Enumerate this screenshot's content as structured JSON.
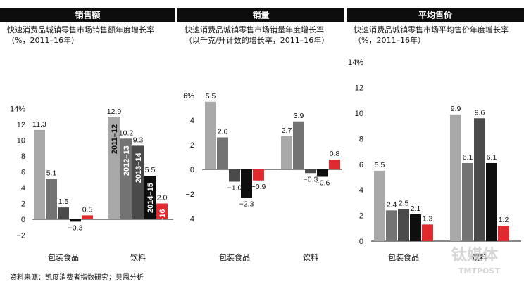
{
  "chart_data": [
    {
      "type": "bar",
      "header": "销售额",
      "subtitle_line1": "快速消费品城镇零售市场销售额年度增长率",
      "subtitle_line2": "（%，2011–16年）",
      "categories": [
        "包装食品",
        "饮料"
      ],
      "series": [
        {
          "name": "2011–12",
          "values": [
            11.3,
            12.9
          ]
        },
        {
          "name": "2012–13",
          "values": [
            5.1,
            10.2
          ]
        },
        {
          "name": "2013–14",
          "values": [
            1.5,
            9.3
          ]
        },
        {
          "name": "2014–15",
          "values": [
            -0.3,
            5.5
          ]
        },
        {
          "name": "15–16",
          "values": [
            0.5,
            2.0
          ]
        }
      ],
      "value_labels": [
        [
          "11.3",
          "5.1",
          "1.5",
          "−0.3",
          "0.5"
        ],
        [
          "12.9",
          "10.2",
          "9.3",
          "5.5",
          "2.0"
        ]
      ],
      "ylim": [
        -2,
        14
      ],
      "yticks": [
        "−2",
        "0",
        "2",
        "4",
        "6",
        "8",
        "10",
        "12",
        "14%"
      ],
      "yticks_values": [
        -2,
        0,
        2,
        4,
        6,
        8,
        10,
        12,
        14
      ],
      "legend_in_bars": true
    },
    {
      "type": "bar",
      "header": "销量",
      "subtitle_line1": "快速消费品城镇零售市场销量年度增长率",
      "subtitle_line2": "（以千克/升计数的增长率，2011–16年）",
      "categories": [
        "包装食品",
        "饮料"
      ],
      "series": [
        {
          "values": [
            5.5,
            2.7
          ]
        },
        {
          "values": [
            2.6,
            3.9
          ]
        },
        {
          "values": [
            -1.0,
            -0.3
          ]
        },
        {
          "values": [
            -2.3,
            -0.6
          ]
        },
        {
          "values": [
            -0.9,
            0.8
          ]
        }
      ],
      "value_labels": [
        [
          "5.5",
          "2.6",
          "−1.0",
          "−2.3",
          "−0.9"
        ],
        [
          "2.7",
          "3.9",
          "−0.3",
          "−0.6",
          "0.8"
        ]
      ],
      "ylim": [
        -4,
        6
      ],
      "yticks": [
        "−4",
        "−2",
        "0",
        "2",
        "4",
        "6%"
      ],
      "yticks_values": [
        -4,
        -2,
        0,
        2,
        4,
        6
      ]
    },
    {
      "type": "bar",
      "header": "平均售价",
      "subtitle_line1": "快速消费品城镇零售市场平均售价年度增长率",
      "subtitle_line2": "（%，2011–16年）",
      "categories": [
        "包装食品",
        "饮料"
      ],
      "series": [
        {
          "values": [
            5.5,
            9.9
          ]
        },
        {
          "values": [
            2.4,
            6.1
          ]
        },
        {
          "values": [
            2.5,
            9.6
          ]
        },
        {
          "values": [
            2.1,
            6.1
          ]
        },
        {
          "values": [
            1.3,
            1.2
          ]
        }
      ],
      "value_labels": [
        [
          "5.5",
          "2.4",
          "2.5",
          "2.1",
          "1.3"
        ],
        [
          "9.9",
          "6.1",
          "9.6",
          "6.1",
          "1.2"
        ]
      ],
      "ylim": [
        0,
        14
      ],
      "yticks": [
        "0",
        "2",
        "4",
        "6",
        "8",
        "10",
        "12",
        "14%"
      ],
      "yticks_values": [
        0,
        2,
        4,
        6,
        8,
        10,
        12,
        14
      ]
    }
  ],
  "colors": [
    "#a8a8a8",
    "#737373",
    "#4a4a4a",
    "#0e0e0e",
    "#e12a2f"
  ],
  "header_bg": "#0d0d0d",
  "source": "资料来源：凯度消费者指数研究；贝恩分析",
  "watermark": {
    "brand": "钛媒体",
    "brand_en": "TMTPOST"
  }
}
